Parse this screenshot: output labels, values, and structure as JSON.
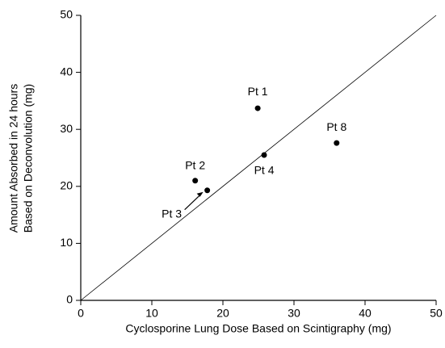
{
  "chart_data": {
    "type": "scatter",
    "xlabel": "Cyclosporine Lung Dose Based on Scintigraphy (mg)",
    "ylabel": [
      "Amount Absorbed in 24 hours",
      "Based on Deconvolution (mg)"
    ],
    "x": [
      24.9,
      16.1,
      17.8,
      25.8,
      36.0
    ],
    "values": [
      33.7,
      21.0,
      19.3,
      25.5,
      27.6
    ],
    "point_labels": [
      "Pt 1",
      "Pt 2",
      "Pt 3",
      "Pt 4",
      "Pt 8"
    ],
    "color": "#000000",
    "reference_line": {
      "x": [
        0,
        50
      ],
      "y": [
        0,
        50
      ]
    },
    "xlim": [
      0,
      50
    ],
    "ylim": [
      0,
      50
    ],
    "xticks": [
      0,
      10,
      20,
      30,
      40,
      50
    ],
    "yticks": [
      0,
      10,
      20,
      30,
      40,
      50
    ],
    "grid": false
  }
}
